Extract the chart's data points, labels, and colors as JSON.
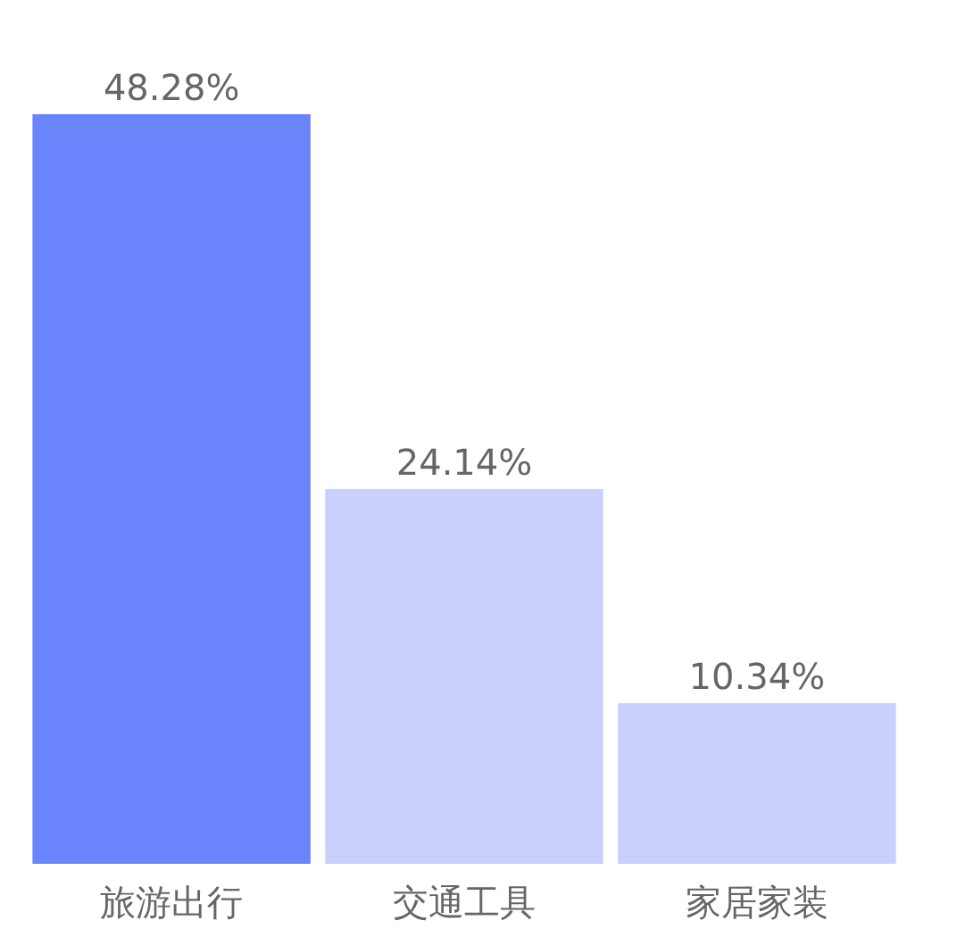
{
  "chart_data": {
    "type": "bar",
    "categories": [
      "旅游出行",
      "交通工具",
      "家居家装"
    ],
    "values": [
      48.28,
      24.14,
      10.34
    ],
    "value_labels": [
      "48.28%",
      "24.14%",
      "10.34%"
    ],
    "colors": [
      "#5a78fb",
      "#c3cbfb",
      "#c3cbfb"
    ],
    "ylim": [
      0,
      48.28
    ],
    "grid": false,
    "tick_labels": "x"
  }
}
